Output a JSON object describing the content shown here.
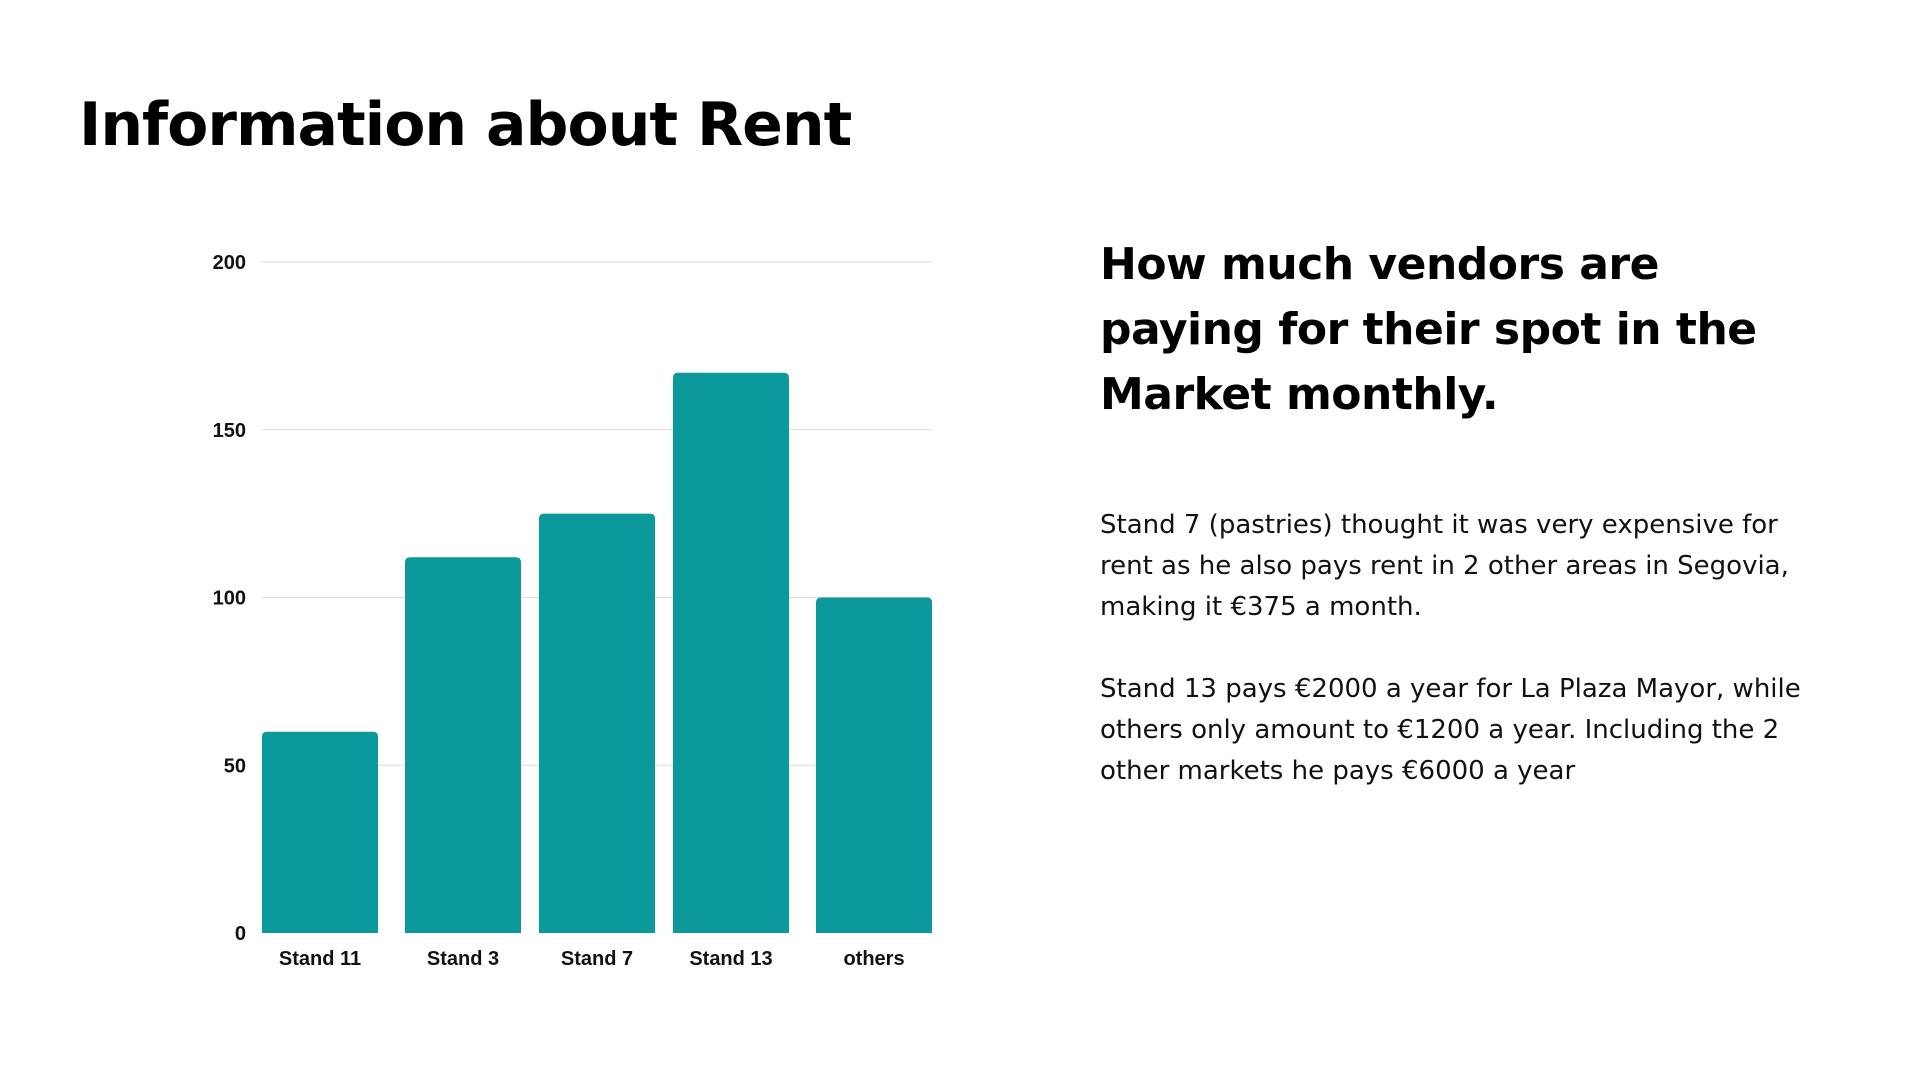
{
  "slide": {
    "title": "Information about Rent",
    "heading": "How much vendors are paying for their spot in the Market monthly.",
    "paragraphs": [
      "Stand 7 (pastries) thought it was very expensive for rent as he also pays rent in 2 other areas in Segovia, making it €375 a month.",
      "Stand 13 pays €2000 a year for La Plaza Mayor, while others only amount to €1200 a year. Including the 2 other markets he pays €6000 a year"
    ]
  },
  "chart_data": {
    "type": "bar",
    "categories": [
      "Stand 11",
      "Stand 3",
      "Stand 7",
      "Stand 13",
      "others"
    ],
    "values": [
      60,
      112,
      125,
      167,
      100
    ],
    "ylim": [
      0,
      200
    ],
    "yticks": [
      0,
      50,
      100,
      150,
      200
    ],
    "bar_color": "#0b999b",
    "grid": true,
    "legend": "none"
  }
}
